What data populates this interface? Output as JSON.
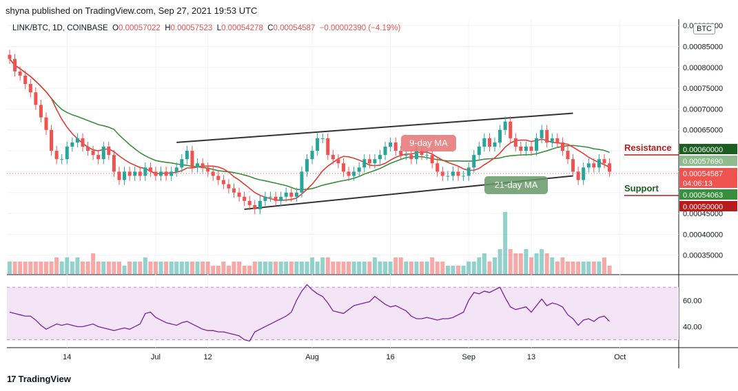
{
  "header": "shyna published on TradingView.com, Sep 27, 2021 19:53 UTC",
  "ohlc": {
    "symbol": "LINK/BTC, 1D, COINBASE",
    "o_label": "O",
    "o": "0.00057022",
    "h_label": "H",
    "h": "0.00057523",
    "l_label": "L",
    "l": "0.00054278",
    "c_label": "C",
    "c": "0.00054587",
    "change": "−0.00002390 (−4.19%)"
  },
  "unit": "BTC",
  "logo": "TradingView",
  "chart_data": {
    "type": "candlestick",
    "price_ticks": [
      "0.00090000",
      "0.00085000",
      "0.00080000",
      "0.00075000",
      "0.00070000",
      "0.00065000",
      "0.00060000",
      "0.00055000",
      "0.00050000",
      "0.00045000",
      "0.00040000",
      "0.00035000"
    ],
    "x_ticks": [
      "14",
      "Jul",
      "12",
      "Aug",
      "16",
      "Sep",
      "13",
      "Oct"
    ],
    "rsi_ticks": [
      "60.00",
      "40.00"
    ],
    "price_labels": [
      {
        "text": "0.00060000",
        "color": "#1b5e20"
      },
      {
        "text": "0.00057690",
        "color": "#ffffff"
      },
      {
        "text": "0.00054587",
        "color": "#ef5350"
      },
      {
        "text": "04:06:13",
        "color": "#ef5350"
      },
      {
        "text": "0.00054063",
        "color": "#ffffff"
      },
      {
        "text": "0.00050000",
        "color": "#b71c1c"
      }
    ],
    "annotations": {
      "resistance": "Resistance",
      "support": "Support",
      "ma9": "9-day MA",
      "ma21": "21-day MA"
    },
    "colors": {
      "up": "#26a69a",
      "down": "#ef5350",
      "ma9": "#e53935",
      "ma21": "#388e3c",
      "rsi": "#7b1fa2",
      "rsi_band": "#f3e5f5"
    },
    "closes": [
      0.00082,
      0.00079,
      0.00078,
      0.00076,
      0.00074,
      0.00071,
      0.00068,
      0.00065,
      0.0006,
      0.00058,
      0.00058,
      0.00061,
      0.00062,
      0.00063,
      0.00061,
      0.0006,
      0.00059,
      0.00058,
      0.00061,
      0.00059,
      0.00055,
      0.00053,
      0.00055,
      0.00054,
      0.00055,
      0.00054,
      0.00056,
      0.00055,
      0.00054,
      0.00055,
      0.00054,
      0.00055,
      0.00056,
      0.00058,
      0.0006,
      0.00056,
      0.00057,
      0.00056,
      0.00055,
      0.00054,
      0.00053,
      0.00052,
      0.00051,
      0.0005,
      0.00049,
      0.00048,
      0.00047,
      0.00046,
      0.00048,
      0.00049,
      0.00049,
      0.00048,
      0.00049,
      0.0005,
      0.00049,
      0.0005,
      0.00055,
      0.00058,
      0.0006,
      0.00063,
      0.00063,
      0.00059,
      0.00058,
      0.00057,
      0.00055,
      0.00054,
      0.00055,
      0.00056,
      0.00058,
      0.00057,
      0.00058,
      0.00059,
      0.00061,
      0.00062,
      0.0006,
      0.00059,
      0.00059,
      0.00058,
      0.0006,
      0.00059,
      0.00059,
      0.00057,
      0.00055,
      0.00054,
      0.00054,
      0.00055,
      0.00054,
      0.00054,
      0.00056,
      0.00059,
      0.00061,
      0.00063,
      0.00061,
      0.00062,
      0.00065,
      0.00067,
      0.00063,
      0.00061,
      0.0006,
      0.00061,
      0.0006,
      0.00063,
      0.00065,
      0.00062,
      0.00063,
      0.00062,
      0.0006,
      0.00058,
      0.00055,
      0.00053,
      0.00056,
      0.00057,
      0.00056,
      0.00058,
      0.00057,
      0.00055
    ],
    "volumes": [
      3,
      3,
      3,
      3,
      3,
      3,
      3,
      3,
      3,
      4,
      3,
      4,
      3,
      4,
      3,
      3,
      5,
      3,
      3,
      3,
      3,
      3,
      2,
      3,
      3,
      3,
      4,
      3,
      3,
      3,
      3,
      3,
      3,
      3,
      3,
      3,
      3,
      3,
      3,
      2,
      2,
      3,
      2,
      3,
      3,
      2,
      2,
      3,
      3,
      3,
      3,
      3,
      3,
      3,
      3,
      3,
      3,
      3,
      4,
      3,
      4,
      4,
      3,
      3,
      3,
      3,
      3,
      3,
      3,
      3,
      4,
      3,
      3,
      3,
      4,
      4,
      3,
      3,
      3,
      3,
      3,
      4,
      3,
      3,
      2,
      2,
      2,
      2,
      3,
      3,
      4,
      5,
      3,
      4,
      6,
      15,
      6,
      5,
      5,
      6,
      4,
      5,
      6,
      5,
      4,
      3,
      4,
      3,
      3,
      3,
      3,
      3,
      3,
      3,
      4,
      2
    ],
    "rsi": [
      51,
      50,
      49,
      48,
      48,
      45,
      41,
      38,
      40,
      42,
      41,
      42,
      41,
      40,
      40,
      41,
      42,
      40,
      39,
      38,
      37,
      38,
      39,
      38,
      40,
      42,
      50,
      51,
      47,
      45,
      43,
      42,
      41,
      43,
      44,
      42,
      40,
      38,
      37,
      37,
      36,
      36,
      35,
      34,
      33,
      30,
      29,
      36,
      38,
      40,
      42,
      44,
      46,
      48,
      51,
      60,
      67,
      72,
      68,
      65,
      63,
      58,
      52,
      51,
      50,
      53,
      56,
      57,
      58,
      59,
      63,
      60,
      57,
      55,
      56,
      54,
      52,
      48,
      46,
      46,
      47,
      46,
      45,
      46,
      46,
      47,
      49,
      51,
      60,
      66,
      65,
      67,
      66,
      68,
      70,
      62,
      55,
      53,
      54,
      55,
      51,
      56,
      61,
      56,
      58,
      57,
      55,
      49,
      46,
      41,
      45,
      46,
      44,
      47,
      48,
      44
    ],
    "channel": {
      "upper": [
        [
          0.00062,
          32
        ],
        [
          0.00069,
          108
        ]
      ],
      "lower": [
        [
          0.00046,
          45
        ],
        [
          0.00054,
          108
        ]
      ]
    }
  }
}
